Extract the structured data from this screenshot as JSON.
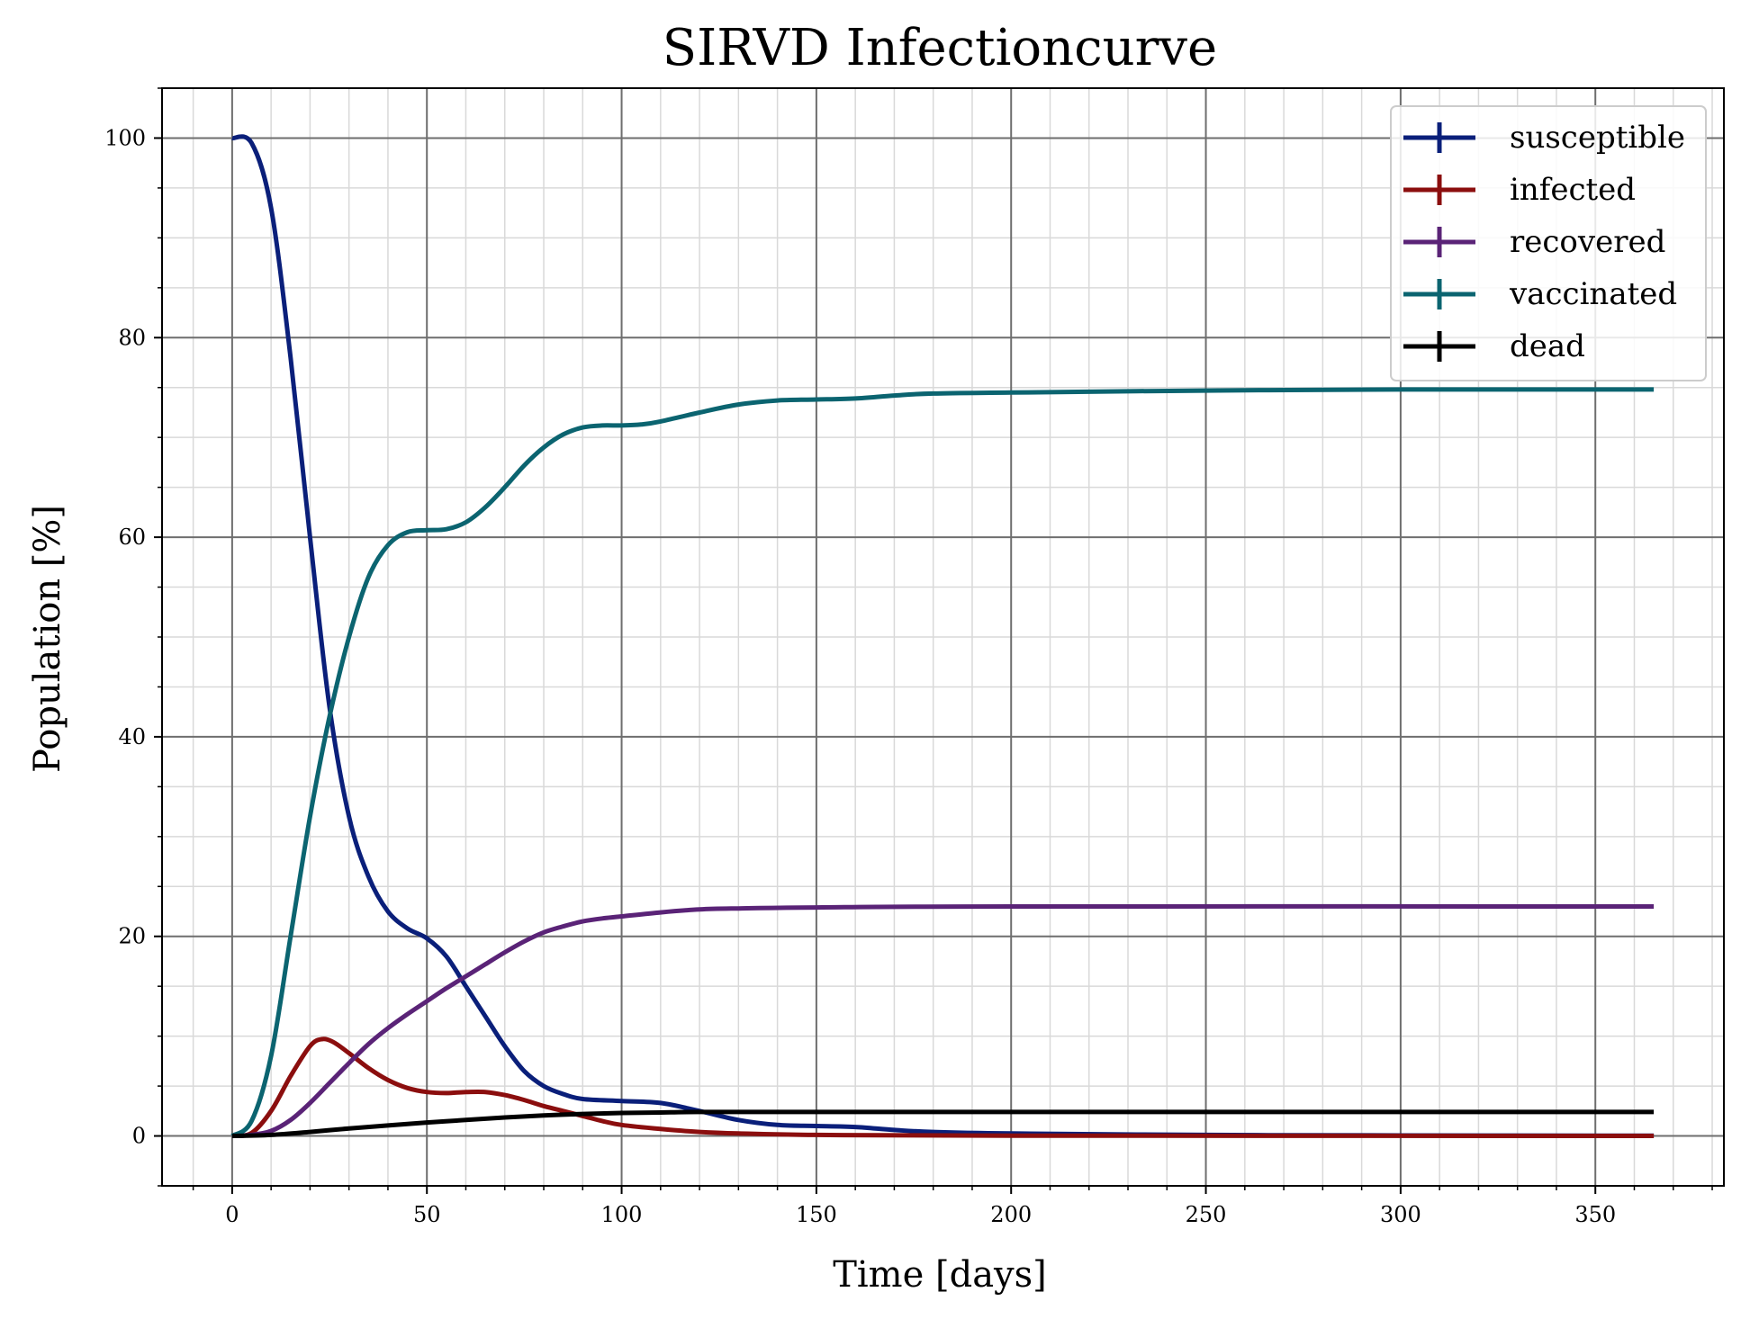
{
  "chart_data": {
    "type": "line",
    "title": "SIRVD Infectioncurve",
    "xlabel": "Time [days]",
    "ylabel": "Population [%]",
    "xlim": [
      -18,
      383
    ],
    "ylim": [
      -5,
      105
    ],
    "x_ticks": [
      "0",
      "50",
      "100",
      "150",
      "200",
      "250",
      "300",
      "350"
    ],
    "x_tick_values": [
      0,
      50,
      100,
      150,
      200,
      250,
      300,
      350
    ],
    "y_ticks": [
      "0",
      "20",
      "40",
      "60",
      "80",
      "100"
    ],
    "y_tick_values": [
      0,
      20,
      40,
      60,
      80,
      100
    ],
    "x_minor_step": 10,
    "y_minor_step": 5,
    "grid": true,
    "legend_position": "top-right",
    "series": [
      {
        "name": "susceptible",
        "color": "#0a1f7a",
        "points": [
          [
            0,
            100
          ],
          [
            5,
            99.5
          ],
          [
            10,
            93
          ],
          [
            15,
            78
          ],
          [
            20,
            60
          ],
          [
            25,
            43
          ],
          [
            30,
            32
          ],
          [
            35,
            26
          ],
          [
            40,
            22.5
          ],
          [
            45,
            20.8
          ],
          [
            50,
            19.8
          ],
          [
            55,
            18
          ],
          [
            60,
            15
          ],
          [
            65,
            12
          ],
          [
            70,
            9
          ],
          [
            75,
            6.5
          ],
          [
            80,
            5
          ],
          [
            85,
            4.2
          ],
          [
            90,
            3.7
          ],
          [
            100,
            3.5
          ],
          [
            110,
            3.3
          ],
          [
            120,
            2.5
          ],
          [
            130,
            1.6
          ],
          [
            140,
            1.1
          ],
          [
            150,
            1.0
          ],
          [
            160,
            0.9
          ],
          [
            170,
            0.6
          ],
          [
            180,
            0.4
          ],
          [
            200,
            0.25
          ],
          [
            250,
            0.1
          ],
          [
            300,
            0.05
          ],
          [
            365,
            0.02
          ]
        ]
      },
      {
        "name": "infected",
        "color": "#8b0e0e",
        "points": [
          [
            0,
            0
          ],
          [
            5,
            0.3
          ],
          [
            10,
            2.5
          ],
          [
            15,
            6
          ],
          [
            20,
            9
          ],
          [
            23,
            9.7
          ],
          [
            26,
            9.4
          ],
          [
            30,
            8.3
          ],
          [
            35,
            6.8
          ],
          [
            40,
            5.6
          ],
          [
            45,
            4.8
          ],
          [
            50,
            4.4
          ],
          [
            55,
            4.3
          ],
          [
            60,
            4.4
          ],
          [
            65,
            4.4
          ],
          [
            70,
            4.1
          ],
          [
            75,
            3.6
          ],
          [
            80,
            3.0
          ],
          [
            85,
            2.5
          ],
          [
            90,
            2.0
          ],
          [
            95,
            1.5
          ],
          [
            100,
            1.1
          ],
          [
            110,
            0.7
          ],
          [
            120,
            0.4
          ],
          [
            130,
            0.25
          ],
          [
            150,
            0.1
          ],
          [
            200,
            0.03
          ],
          [
            365,
            0
          ]
        ]
      },
      {
        "name": "recovered",
        "color": "#5a2377",
        "points": [
          [
            0,
            0
          ],
          [
            5,
            0.1
          ],
          [
            10,
            0.5
          ],
          [
            15,
            1.6
          ],
          [
            20,
            3.3
          ],
          [
            25,
            5.3
          ],
          [
            30,
            7.3
          ],
          [
            35,
            9.2
          ],
          [
            40,
            10.8
          ],
          [
            45,
            12.2
          ],
          [
            50,
            13.5
          ],
          [
            55,
            14.8
          ],
          [
            60,
            16.0
          ],
          [
            65,
            17.2
          ],
          [
            70,
            18.4
          ],
          [
            75,
            19.5
          ],
          [
            80,
            20.4
          ],
          [
            85,
            21.0
          ],
          [
            90,
            21.5
          ],
          [
            95,
            21.8
          ],
          [
            100,
            22.0
          ],
          [
            110,
            22.4
          ],
          [
            120,
            22.7
          ],
          [
            130,
            22.8
          ],
          [
            150,
            22.9
          ],
          [
            200,
            23.0
          ],
          [
            365,
            23.0
          ]
        ]
      },
      {
        "name": "vaccinated",
        "color": "#0b6470",
        "points": [
          [
            0,
            0
          ],
          [
            5,
            1.5
          ],
          [
            10,
            8
          ],
          [
            15,
            20
          ],
          [
            20,
            32
          ],
          [
            25,
            42
          ],
          [
            30,
            50
          ],
          [
            35,
            56
          ],
          [
            40,
            59.2
          ],
          [
            45,
            60.5
          ],
          [
            50,
            60.7
          ],
          [
            55,
            60.8
          ],
          [
            60,
            61.5
          ],
          [
            65,
            63
          ],
          [
            70,
            65
          ],
          [
            75,
            67.2
          ],
          [
            80,
            69
          ],
          [
            85,
            70.3
          ],
          [
            90,
            71
          ],
          [
            95,
            71.2
          ],
          [
            100,
            71.2
          ],
          [
            105,
            71.3
          ],
          [
            110,
            71.6
          ],
          [
            120,
            72.5
          ],
          [
            130,
            73.3
          ],
          [
            140,
            73.7
          ],
          [
            150,
            73.8
          ],
          [
            160,
            73.9
          ],
          [
            170,
            74.2
          ],
          [
            180,
            74.4
          ],
          [
            200,
            74.5
          ],
          [
            250,
            74.7
          ],
          [
            300,
            74.8
          ],
          [
            365,
            74.8
          ]
        ]
      },
      {
        "name": "dead",
        "color": "#000000",
        "points": [
          [
            0,
            0
          ],
          [
            10,
            0.1
          ],
          [
            20,
            0.4
          ],
          [
            30,
            0.75
          ],
          [
            40,
            1.05
          ],
          [
            50,
            1.35
          ],
          [
            60,
            1.6
          ],
          [
            70,
            1.85
          ],
          [
            80,
            2.05
          ],
          [
            90,
            2.2
          ],
          [
            100,
            2.3
          ],
          [
            110,
            2.35
          ],
          [
            120,
            2.4
          ],
          [
            150,
            2.4
          ],
          [
            200,
            2.4
          ],
          [
            365,
            2.4
          ]
        ]
      }
    ]
  }
}
